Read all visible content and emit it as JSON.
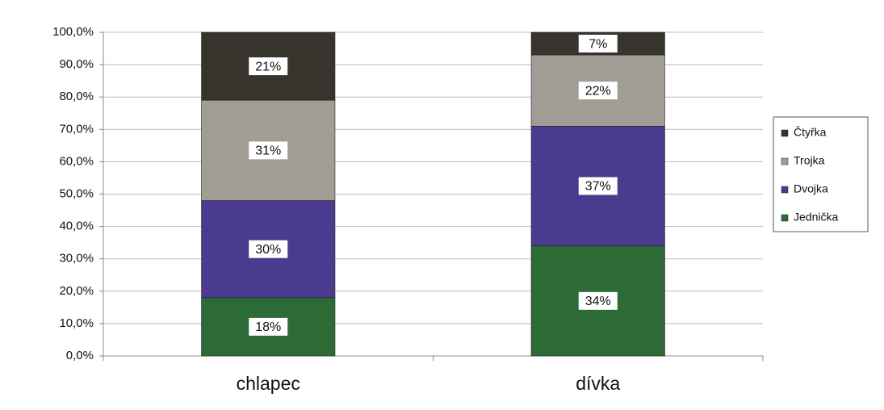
{
  "chart_data": {
    "type": "stacked_bar",
    "categories": [
      "chlapec",
      "dívka"
    ],
    "series": [
      {
        "name": "Jednička",
        "color": "#2d6b36",
        "values": [
          18,
          34
        ],
        "value_labels": [
          "18%",
          "34%"
        ]
      },
      {
        "name": "Dvojka",
        "color": "#4b3b8e",
        "values": [
          30,
          37
        ],
        "value_labels": [
          "30%",
          "37%"
        ]
      },
      {
        "name": "Trojka",
        "color": "#a19d95",
        "values": [
          31,
          22
        ],
        "value_labels": [
          "31%",
          "22%"
        ]
      },
      {
        "name": "Čtyřka",
        "color": "#37342d",
        "values": [
          21,
          7
        ],
        "value_labels": [
          "21%",
          "7%"
        ]
      }
    ],
    "ylim": [
      0,
      100
    ],
    "yticks": [
      {
        "value": 0,
        "label": "0,0%"
      },
      {
        "value": 10,
        "label": "10,0%"
      },
      {
        "value": 20,
        "label": "20,0%"
      },
      {
        "value": 30,
        "label": "30,0%"
      },
      {
        "value": 40,
        "label": "40,0%"
      },
      {
        "value": 50,
        "label": "50,0%"
      },
      {
        "value": 60,
        "label": "60,0%"
      },
      {
        "value": 70,
        "label": "70,0%"
      },
      {
        "value": 80,
        "label": "80,0%"
      },
      {
        "value": 90,
        "label": "90,0%"
      },
      {
        "value": 100,
        "label": "100,0%"
      }
    ],
    "grid": true,
    "legend": "right"
  }
}
